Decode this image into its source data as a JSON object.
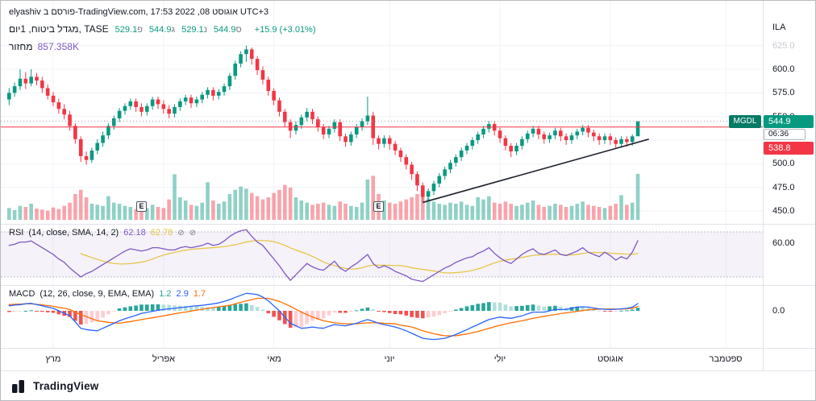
{
  "colors": {
    "up": "#089981",
    "down": "#f23645",
    "up_volume": "rgba(8,153,129,0.45)",
    "down_volume": "rgba(242,54,69,0.45)",
    "rsi_line": "#7e57c2",
    "rsi_ma_line": "#e8c23d",
    "macd_line": "#2962ff",
    "signal_line": "#ff6d00",
    "hist_up_grow": "#26a69a",
    "hist_up_fall": "#b2dfdb",
    "hist_down_fall": "#ef5350",
    "hist_down_grow": "#ffcdd2",
    "grid": "#f0f3fa",
    "separator": "#e0e3eb",
    "trendline": "#1e222d",
    "horizontal_line": "#f23645",
    "last_price_line": "#9598a1",
    "text": "#131722",
    "muted_text": "#787b86",
    "faded_tick": "#c5c8ce",
    "band_fill": "rgba(126,87,194,0.08)",
    "band_line": "#8a8e99",
    "symbol_badge_bg": "#067a65",
    "volume_value_text": "#7e57c2",
    "change_text": "#089981"
  },
  "header": {
    "attribution": "elyashiv פורסם ב-TradingView.com, אוגוסט 08, 2022 17:53 UTC+3",
    "symbol_title": "מגדל ביטוח, 1יום, TASE",
    "ohlc": [
      {
        "label": "פ",
        "value": "529.1"
      },
      {
        "label": "ג",
        "value": "544.9"
      },
      {
        "label": "נ",
        "value": "529.1"
      },
      {
        "label": "ס",
        "value": "544.9"
      }
    ],
    "change": "+15.9 (+3.01%)",
    "volume_label": "מחזור",
    "volume_value": "857.358K"
  },
  "price_scale": {
    "currency": "ILA",
    "ticks": [
      {
        "label": "625.0",
        "price": 625,
        "muted": true
      },
      {
        "label": "600.0",
        "price": 600
      },
      {
        "label": "575.0",
        "price": 575
      },
      {
        "label": "550.0",
        "price": 550
      },
      {
        "label": "500.0",
        "price": 500
      },
      {
        "label": "475.0",
        "price": 475
      },
      {
        "label": "450.0",
        "price": 450
      }
    ],
    "symbol_badge": "MGDL",
    "last_price_label": "544.9",
    "countdown": "06:36",
    "line_price_label": "538.8"
  },
  "time_scale": {
    "labels": [
      {
        "text": "מרץ",
        "day": 8
      },
      {
        "text": "אפריל",
        "day": 28
      },
      {
        "text": "מאי",
        "day": 48
      },
      {
        "text": "יוני",
        "day": 69
      },
      {
        "text": "יולי",
        "day": 89
      },
      {
        "text": "אוגוסט",
        "day": 109
      },
      {
        "text": "ספטמבר",
        "day": 130
      }
    ]
  },
  "rsi_panel": {
    "title": "RSI",
    "params": "(14, close, SMA, 14, 2)",
    "value": "62.18",
    "ma_value": "62.78",
    "axis_tick": "60.00",
    "upper_band": 70,
    "lower_band": 30
  },
  "macd_panel": {
    "title": "MACD",
    "params": "(12, 26, close, 9, EMA, EMA)",
    "hist_value": "1.2",
    "macd_value": "2.9",
    "signal_value": "1.7",
    "axis_tick": "0.0",
    "zero": 0
  },
  "footer": {
    "brand": "TradingView"
  },
  "chart_data": {
    "type": "candlestick",
    "symbol": "MGDL",
    "interval": "1D",
    "last_price": 544.9,
    "horizontal_line_price": 538.8,
    "price_range": [
      450,
      625
    ],
    "grid_prices": [
      625,
      600,
      575,
      550,
      525,
      500,
      475,
      450
    ],
    "earnings_marker_label": "E",
    "earnings_days": [
      24,
      67
    ],
    "trendline": {
      "from_day": 75,
      "from_price": 459,
      "to_day": 116,
      "to_price": 526
    },
    "candles": [
      [
        568,
        580,
        562,
        575
      ],
      [
        575,
        586,
        571,
        582
      ],
      [
        582,
        600,
        578,
        590
      ],
      [
        590,
        597,
        579,
        585
      ],
      [
        585,
        600,
        582,
        592
      ],
      [
        592,
        596,
        583,
        588
      ],
      [
        588,
        592,
        575,
        580
      ],
      [
        580,
        584,
        568,
        572
      ],
      [
        572,
        576,
        561,
        565
      ],
      [
        565,
        569,
        553,
        558
      ],
      [
        558,
        563,
        547,
        552
      ],
      [
        552,
        556,
        535,
        540
      ],
      [
        540,
        543,
        521,
        526
      ],
      [
        526,
        529,
        502,
        508
      ],
      [
        508,
        513,
        499,
        504
      ],
      [
        504,
        517,
        501,
        514
      ],
      [
        514,
        526,
        510,
        522
      ],
      [
        522,
        534,
        518,
        530
      ],
      [
        530,
        543,
        526,
        540
      ],
      [
        540,
        551,
        536,
        548
      ],
      [
        548,
        559,
        544,
        556
      ],
      [
        556,
        564,
        552,
        561
      ],
      [
        561,
        569,
        557,
        566
      ],
      [
        566,
        569,
        555,
        560
      ],
      [
        560,
        564,
        550,
        555
      ],
      [
        555,
        564,
        551,
        561
      ],
      [
        561,
        571,
        557,
        568
      ],
      [
        568,
        571,
        558,
        563
      ],
      [
        563,
        567,
        553,
        558
      ],
      [
        558,
        562,
        548,
        553
      ],
      [
        553,
        563,
        549,
        560
      ],
      [
        560,
        569,
        556,
        566
      ],
      [
        566,
        573,
        562,
        570
      ],
      [
        570,
        573,
        559,
        564
      ],
      [
        564,
        571,
        560,
        568
      ],
      [
        568,
        576,
        564,
        573
      ],
      [
        573,
        581,
        569,
        578
      ],
      [
        578,
        581,
        567,
        572
      ],
      [
        572,
        579,
        568,
        576
      ],
      [
        576,
        585,
        572,
        582
      ],
      [
        582,
        596,
        578,
        593
      ],
      [
        593,
        609,
        589,
        606
      ],
      [
        606,
        619,
        602,
        616
      ],
      [
        616,
        625,
        608,
        621
      ],
      [
        621,
        623,
        605,
        611
      ],
      [
        611,
        614,
        594,
        599
      ],
      [
        599,
        603,
        584,
        589
      ],
      [
        589,
        592,
        572,
        577
      ],
      [
        577,
        580,
        562,
        567
      ],
      [
        567,
        570,
        550,
        555
      ],
      [
        555,
        558,
        539,
        544
      ],
      [
        544,
        547,
        527,
        535
      ],
      [
        535,
        545,
        531,
        541
      ],
      [
        541,
        552,
        537,
        549
      ],
      [
        549,
        559,
        545,
        555
      ],
      [
        555,
        558,
        542,
        547
      ],
      [
        547,
        550,
        534,
        539
      ],
      [
        539,
        542,
        526,
        531
      ],
      [
        531,
        540,
        527,
        537
      ],
      [
        537,
        547,
        533,
        544
      ],
      [
        544,
        547,
        524,
        529
      ],
      [
        529,
        532,
        518,
        523
      ],
      [
        523,
        534,
        519,
        531
      ],
      [
        531,
        542,
        527,
        539
      ],
      [
        539,
        548,
        535,
        545
      ],
      [
        545,
        571,
        541,
        551
      ],
      [
        551,
        555,
        520,
        527
      ],
      [
        527,
        530,
        515,
        521
      ],
      [
        521,
        530,
        517,
        527
      ],
      [
        527,
        530,
        515,
        521
      ],
      [
        521,
        524,
        509,
        514
      ],
      [
        514,
        517,
        502,
        507
      ],
      [
        507,
        510,
        494,
        499
      ],
      [
        499,
        502,
        483,
        489
      ],
      [
        489,
        492,
        471,
        477
      ],
      [
        477,
        480,
        459,
        465
      ],
      [
        465,
        474,
        461,
        471
      ],
      [
        471,
        482,
        467,
        479
      ],
      [
        479,
        490,
        475,
        487
      ],
      [
        487,
        497,
        483,
        494
      ],
      [
        494,
        504,
        490,
        501
      ],
      [
        501,
        510,
        497,
        507
      ],
      [
        507,
        517,
        503,
        514
      ],
      [
        514,
        522,
        510,
        519
      ],
      [
        519,
        528,
        515,
        525
      ],
      [
        525,
        534,
        521,
        531
      ],
      [
        531,
        540,
        527,
        537
      ],
      [
        537,
        545,
        533,
        542
      ],
      [
        542,
        545,
        530,
        535
      ],
      [
        535,
        538,
        522,
        527
      ],
      [
        527,
        530,
        514,
        519
      ],
      [
        519,
        522,
        507,
        513
      ],
      [
        513,
        522,
        509,
        519
      ],
      [
        519,
        529,
        515,
        526
      ],
      [
        526,
        535,
        522,
        532
      ],
      [
        532,
        540,
        528,
        537
      ],
      [
        537,
        540,
        526,
        531
      ],
      [
        531,
        534,
        521,
        526
      ],
      [
        526,
        533,
        522,
        530
      ],
      [
        530,
        538,
        526,
        535
      ],
      [
        535,
        538,
        524,
        529
      ],
      [
        529,
        532,
        520,
        525
      ],
      [
        525,
        533,
        521,
        530
      ],
      [
        530,
        537,
        526,
        534
      ],
      [
        534,
        541,
        530,
        538
      ],
      [
        538,
        541,
        528,
        533
      ],
      [
        533,
        536,
        524,
        529
      ],
      [
        529,
        532,
        520,
        525
      ],
      [
        525,
        532,
        521,
        529
      ],
      [
        529,
        532,
        520,
        525
      ],
      [
        525,
        528,
        517,
        521
      ],
      [
        521,
        529,
        517,
        526
      ],
      [
        526,
        529,
        518,
        523
      ],
      [
        523,
        531,
        519,
        529
      ],
      [
        529.1,
        544.9,
        529.1,
        544.9
      ]
    ],
    "volume_k": [
      220,
      180,
      260,
      240,
      300,
      210,
      190,
      170,
      230,
      200,
      260,
      320,
      480,
      560,
      420,
      300,
      280,
      260,
      440,
      320,
      300,
      260,
      240,
      200,
      180,
      220,
      280,
      240,
      220,
      380,
      850,
      420,
      360,
      280,
      260,
      320,
      700,
      360,
      300,
      340,
      480,
      560,
      620,
      580,
      500,
      440,
      380,
      420,
      500,
      560,
      650,
      600,
      420,
      360,
      320,
      280,
      300,
      320,
      280,
      260,
      340,
      300,
      260,
      240,
      320,
      750,
      820,
      480,
      360,
      320,
      300,
      340,
      380,
      420,
      480,
      560,
      400,
      340,
      300,
      280,
      320,
      300,
      340,
      280,
      260,
      420,
      380,
      440,
      320,
      300,
      340,
      300,
      260,
      280,
      320,
      360,
      280,
      240,
      260,
      300,
      280,
      240,
      260,
      300,
      340,
      280,
      260,
      240,
      220,
      260,
      300,
      460,
      280,
      320,
      857
    ],
    "rsi": [
      58,
      59,
      61,
      61,
      62,
      59,
      56,
      53,
      50,
      46,
      43,
      38,
      34,
      30,
      33,
      35,
      38,
      41,
      44,
      47,
      50,
      53,
      55,
      54,
      53,
      54,
      56,
      56,
      55,
      54,
      54,
      56,
      57,
      56,
      57,
      58,
      60,
      58,
      59,
      62,
      66,
      69,
      71,
      72,
      66,
      61,
      58,
      52,
      46,
      40,
      33,
      27,
      32,
      37,
      42,
      39,
      37,
      36,
      40,
      44,
      38,
      35,
      39,
      42,
      46,
      50,
      42,
      38,
      40,
      38,
      35,
      33,
      31,
      28,
      27,
      26,
      29,
      32,
      35,
      38,
      40,
      43,
      45,
      47,
      48,
      51,
      53,
      56,
      51,
      47,
      44,
      42,
      46,
      50,
      53,
      55,
      51,
      50,
      52,
      54,
      50,
      49,
      51,
      53,
      56,
      52,
      50,
      48,
      52,
      49,
      45,
      48,
      46,
      52,
      62.18
    ],
    "macd_line": [
      2.0,
      2.3,
      2.5,
      2.8,
      3.0,
      2.5,
      2.0,
      1.5,
      1.0,
      0.0,
      -1.0,
      -2.0,
      -4.5,
      -7.0,
      -7.5,
      -7.8,
      -8.0,
      -7.0,
      -6.0,
      -5.0,
      -4.0,
      -3.2,
      -2.5,
      -1.8,
      -1.0,
      -0.6,
      -0.2,
      0.2,
      0.5,
      0.8,
      1.0,
      1.3,
      1.5,
      1.8,
      2.0,
      2.2,
      2.5,
      2.8,
      3.2,
      3.8,
      4.5,
      5.4,
      6.2,
      7.0,
      6.8,
      6.5,
      5.5,
      4.0,
      2.0,
      0.0,
      -2.5,
      -5.0,
      -6.0,
      -7.0,
      -6.8,
      -6.5,
      -6.8,
      -7.0,
      -6.2,
      -5.5,
      -5.8,
      -6.0,
      -5.5,
      -5.0,
      -4.2,
      -3.5,
      -4.2,
      -5.0,
      -5.5,
      -6.0,
      -6.5,
      -7.2,
      -8.0,
      -9.0,
      -10.0,
      -11.0,
      -11.3,
      -11.5,
      -11.3,
      -11.0,
      -10.3,
      -9.5,
      -8.5,
      -7.5,
      -6.5,
      -5.5,
      -4.5,
      -3.5,
      -3.0,
      -2.5,
      -2.8,
      -3.0,
      -2.5,
      -2.0,
      -1.2,
      -0.5,
      -0.5,
      -0.5,
      0.0,
      0.5,
      0.5,
      0.5,
      1.0,
      1.5,
      1.6,
      1.5,
      1.1,
      0.8,
      0.6,
      0.5,
      0.6,
      0.8,
      1.0,
      1.5,
      2.9
    ],
    "macd_signal": [
      2.5,
      2.6,
      2.7,
      2.8,
      2.8,
      2.6,
      2.4,
      2.1,
      1.8,
      1.4,
      1.0,
      0.5,
      -0.5,
      -1.5,
      -2.3,
      -3.2,
      -4.0,
      -4.3,
      -4.6,
      -4.8,
      -5.0,
      -4.6,
      -4.3,
      -3.9,
      -3.5,
      -3.1,
      -2.8,
      -2.4,
      -2.0,
      -1.6,
      -1.2,
      -0.8,
      -0.5,
      -0.1,
      0.3,
      0.6,
      1.0,
      1.3,
      1.6,
      1.9,
      2.2,
      2.8,
      3.4,
      4.0,
      4.5,
      5.0,
      5.0,
      5.0,
      4.4,
      3.8,
      2.8,
      1.8,
      0.6,
      -0.5,
      -1.5,
      -2.5,
      -3.2,
      -4.0,
      -4.4,
      -4.8,
      -5.0,
      -5.2,
      -5.2,
      -5.2,
      -5.0,
      -4.8,
      -4.8,
      -4.8,
      -5.0,
      -5.1,
      -5.2,
      -5.8,
      -6.1,
      -6.5,
      -7.2,
      -8.0,
      -8.6,
      -9.2,
      -9.6,
      -10.0,
      -10.0,
      -10.0,
      -9.6,
      -9.3,
      -8.8,
      -8.3,
      -7.6,
      -7.0,
      -6.4,
      -5.8,
      -5.3,
      -4.8,
      -4.4,
      -4.0,
      -3.5,
      -3.0,
      -2.6,
      -2.2,
      -1.8,
      -1.5,
      -1.1,
      -0.8,
      -0.5,
      -0.2,
      0.1,
      0.4,
      0.55,
      0.7,
      0.7,
      0.7,
      0.7,
      0.7,
      0.8,
      1.0,
      1.7
    ]
  }
}
